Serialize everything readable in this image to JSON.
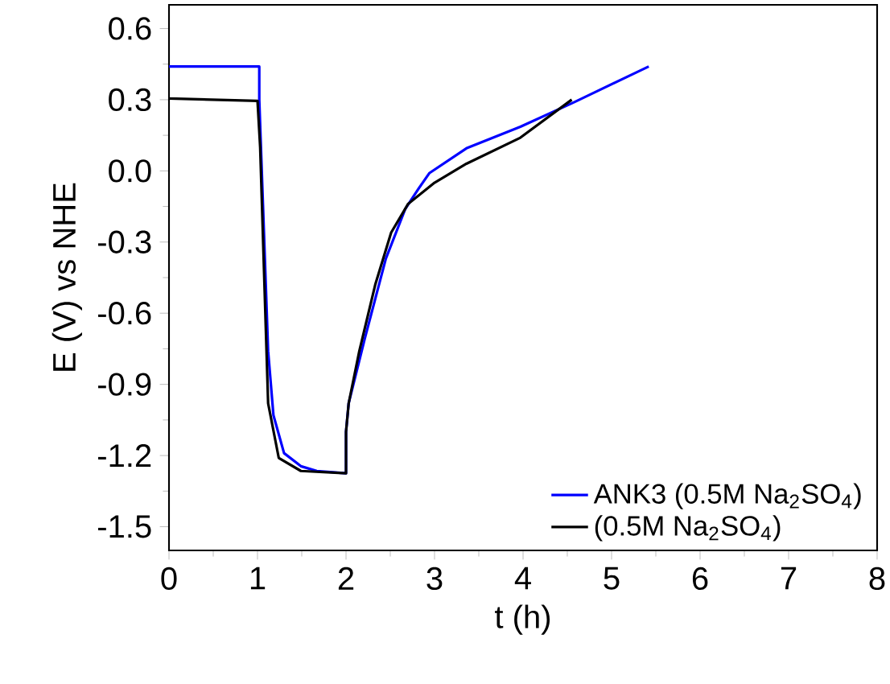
{
  "chart_data": {
    "type": "line",
    "xlabel": "t (h)",
    "ylabel": "E (V) vs NHE",
    "xlim": [
      0,
      8
    ],
    "xticks": [
      0,
      1,
      2,
      3,
      4,
      5,
      6,
      7,
      8
    ],
    "ylim": [
      -1.6,
      0.7
    ],
    "yticks": [
      -1.5,
      -1.2,
      -0.9,
      -0.6,
      -0.3,
      {
        "value": 0,
        "label": "0.0"
      },
      0.3,
      0.6
    ],
    "legend": "bottom right",
    "grid": false,
    "series": [
      {
        "name": "ANK3 (0.5M Na$_{2}$SO$_{4}$)",
        "color": "#0000ff",
        "x": [
          0,
          1.02,
          1.02,
          1.12,
          1.18,
          1.3,
          1.49,
          1.67,
          2.0,
          2.0,
          2.03,
          2.21,
          2.45,
          2.67,
          2.82,
          2.94,
          3.36,
          3.97,
          4.58,
          5.42
        ],
        "values": [
          0.44,
          0.44,
          0.3,
          -0.76,
          -1.03,
          -1.19,
          -1.245,
          -1.265,
          -1.275,
          -1.1,
          -0.98,
          -0.71,
          -0.37,
          -0.16,
          -0.075,
          -0.01,
          0.095,
          0.186,
          0.29,
          0.44
        ]
      },
      {
        "name": "(0.5M Na$_{2}$SO$_{4}$)",
        "color": "#000000",
        "x": [
          0,
          1.0,
          1.03,
          1.12,
          1.24,
          1.49,
          2.0,
          2.0,
          2.03,
          2.15,
          2.33,
          2.51,
          2.7,
          3.0,
          3.36,
          3.97,
          4.55
        ],
        "values": [
          0.305,
          0.295,
          0.1,
          -0.98,
          -1.21,
          -1.265,
          -1.275,
          -1.1,
          -0.98,
          -0.76,
          -0.48,
          -0.26,
          -0.14,
          -0.05,
          0.03,
          0.14,
          0.3
        ]
      }
    ]
  }
}
